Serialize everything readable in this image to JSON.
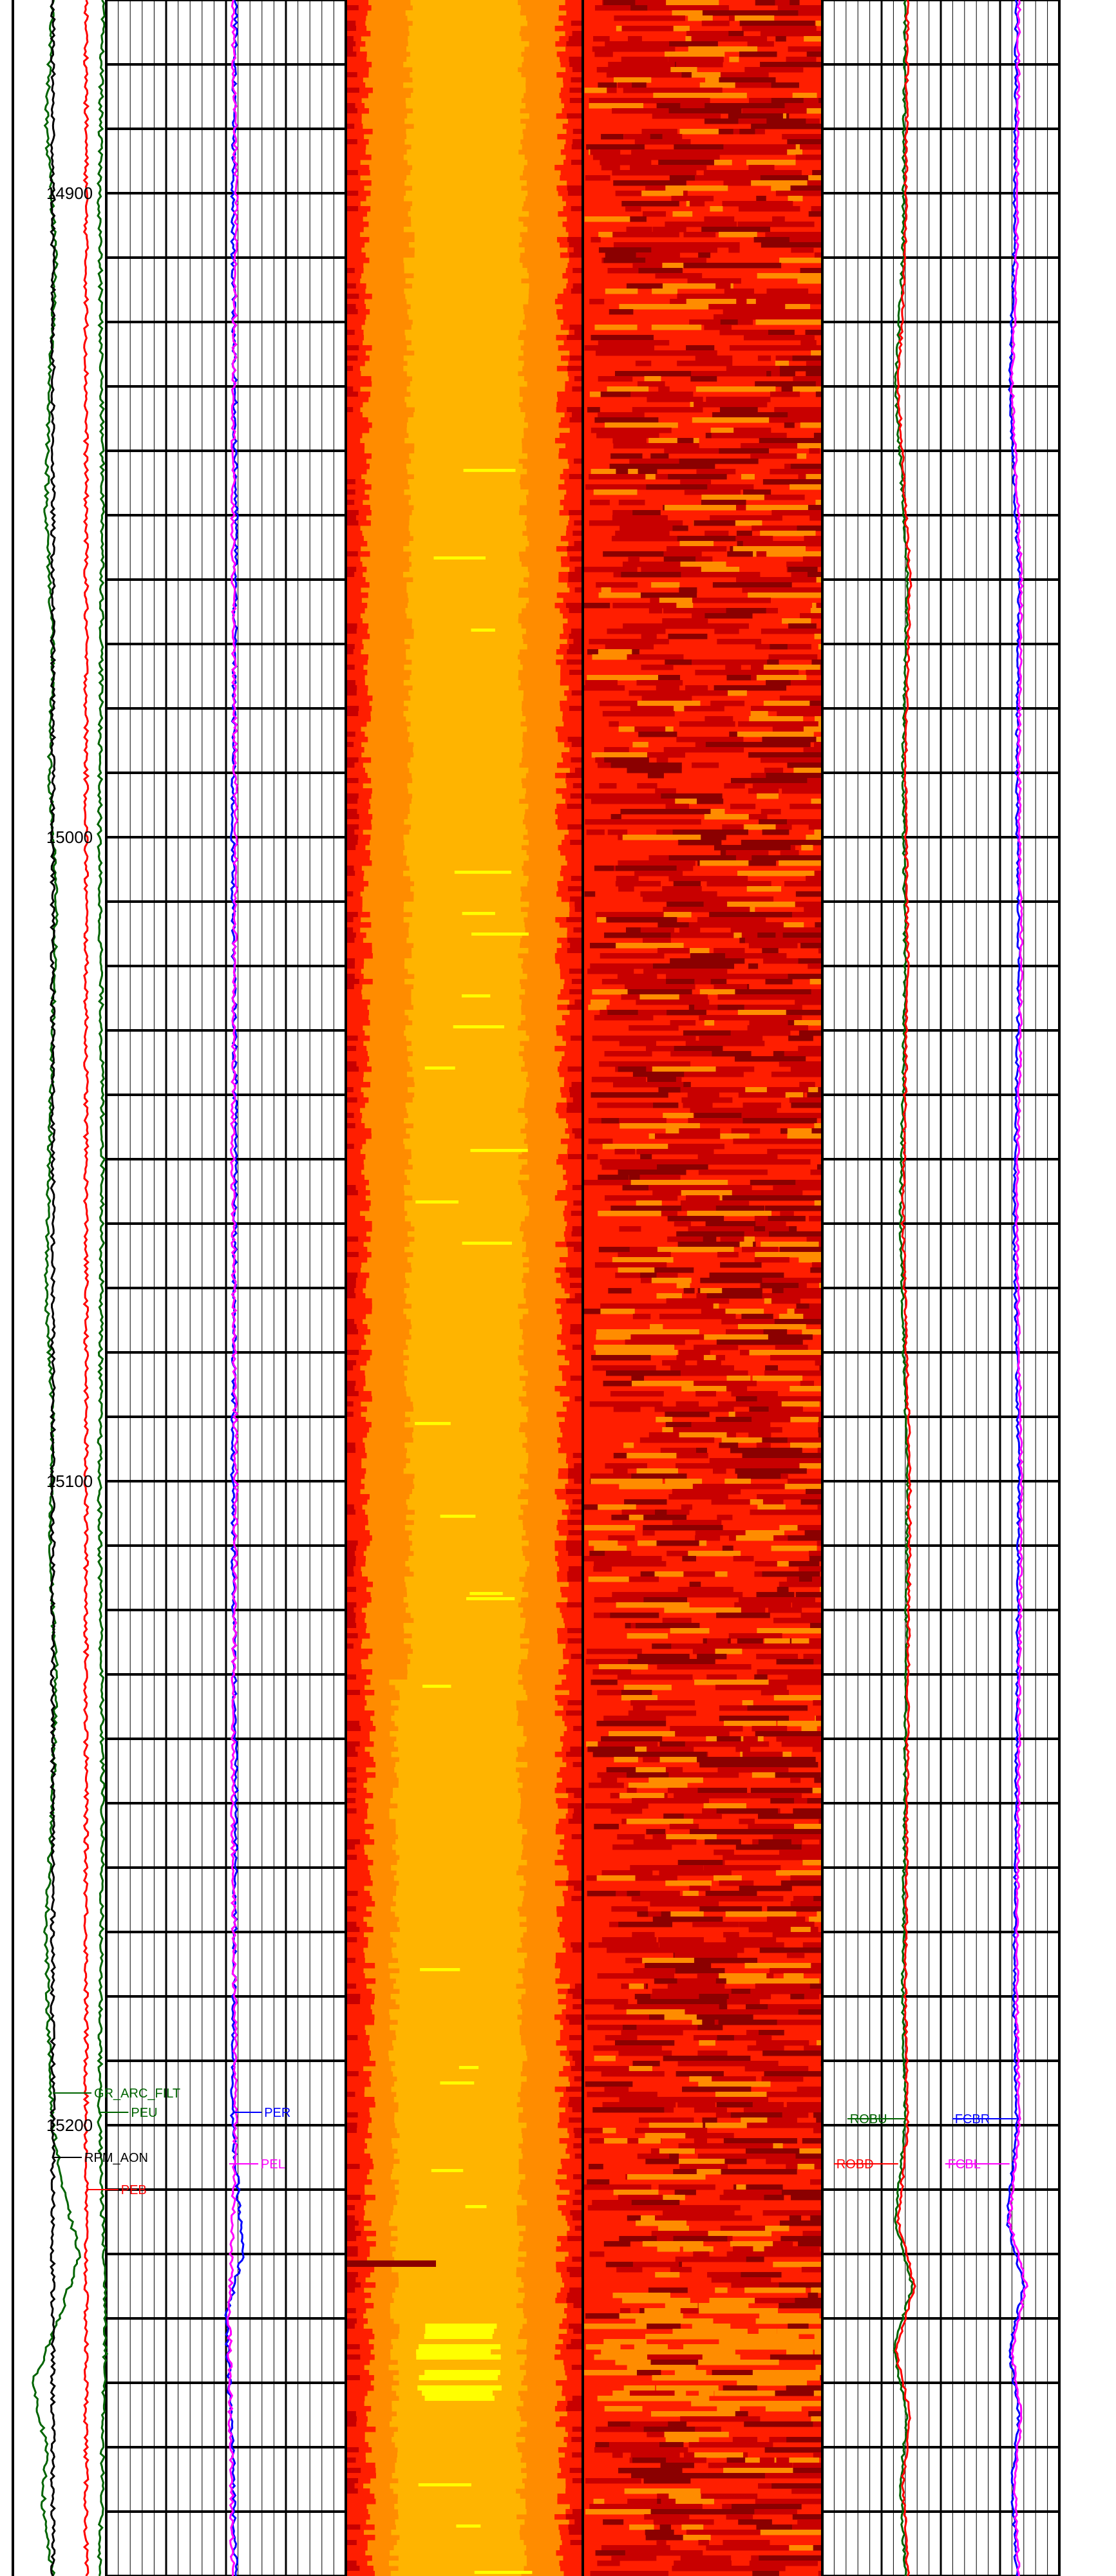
{
  "chart_data": {
    "type": "well-log",
    "title": "",
    "depth_axis": {
      "range": [
        14870,
        15270
      ],
      "orientation": "vertical-down",
      "tick_labels": [
        "14900",
        "15000",
        "15100",
        "15200"
      ],
      "major_grid_interval": 10,
      "grid": true
    },
    "tracks": [
      {
        "name": "track-1",
        "curves": [
          {
            "mnemonic": "GR_ARC_FILT",
            "color": "#006400",
            "depths": [
              14870,
              14890,
              14910,
              14930,
              14950,
              14970,
              14990,
              15010,
              15030,
              15050,
              15070,
              15090,
              15110,
              15130,
              15150,
              15170,
              15190,
              15200,
              15210,
              15220,
              15230,
              15240,
              15250,
              15260,
              15270
            ],
            "values": [
              0.12,
              0.1,
              0.13,
              0.11,
              0.1,
              0.12,
              0.11,
              0.13,
              0.12,
              0.11,
              0.1,
              0.12,
              0.11,
              0.13,
              0.12,
              0.1,
              0.11,
              0.12,
              0.15,
              0.2,
              0.14,
              0.06,
              0.1,
              0.09,
              0.12
            ]
          },
          {
            "mnemonic": "RPM_AON",
            "color": "#000000",
            "depths": [
              14870,
              14950,
              15050,
              15150,
              15200,
              15230,
              15250,
              15270
            ],
            "values": [
              0.12,
              0.12,
              0.12,
              0.12,
              0.12,
              0.12,
              0.12,
              0.12
            ]
          },
          {
            "mnemonic": "PEB",
            "color": "#ff0000",
            "depths": [
              14870,
              15000,
              15100,
              15200,
              15270
            ],
            "values": [
              0.22,
              0.22,
              0.22,
              0.22,
              0.22
            ]
          },
          {
            "mnemonic": "PEU",
            "color": "#006400",
            "depths": [
              14870,
              14900,
              14950,
              15000,
              15050,
              15100,
              15150,
              15200,
              15230,
              15250,
              15270
            ],
            "values": [
              0.27,
              0.26,
              0.27,
              0.26,
              0.27,
              0.26,
              0.27,
              0.26,
              0.28,
              0.27,
              0.26
            ]
          },
          {
            "mnemonic": "PER",
            "color": "#0000ff",
            "depths": [
              14870,
              14900,
              14950,
              15000,
              15050,
              15100,
              15150,
              15200,
              15220,
              15230,
              15250,
              15270
            ],
            "values": [
              0.67,
              0.66,
              0.67,
              0.66,
              0.67,
              0.66,
              0.67,
              0.66,
              0.69,
              0.64,
              0.66,
              0.67
            ]
          },
          {
            "mnemonic": "PEL",
            "color": "#ff00ff",
            "depths": [
              14870,
              14900,
              14950,
              15000,
              15050,
              15100,
              15150,
              15200,
              15230,
              15270
            ],
            "values": [
              0.66,
              0.67,
              0.66,
              0.67,
              0.66,
              0.67,
              0.66,
              0.67,
              0.65,
              0.66
            ]
          }
        ]
      },
      {
        "name": "image-track-1",
        "type": "heatmap",
        "colormap": [
          "#8b0000",
          "#c80000",
          "#ff1e00",
          "#ff8c00",
          "#ffb400",
          "#ffff00"
        ]
      },
      {
        "name": "image-track-2",
        "type": "heatmap",
        "colormap": [
          "#8b0000",
          "#c80000",
          "#ff1e00",
          "#ff8c00",
          "#ffb400",
          "#ffff00"
        ]
      },
      {
        "name": "track-4",
        "curves": [
          {
            "mnemonic": "ROBU",
            "color": "#006400",
            "depths": [
              14870,
              14910,
              14930,
              14960,
              14990,
              15020,
              15060,
              15100,
              15140,
              15180,
              15200,
              15215,
              15225,
              15235,
              15245,
              15255,
              15270
            ],
            "values": [
              0.35,
              0.34,
              0.31,
              0.36,
              0.34,
              0.35,
              0.33,
              0.36,
              0.35,
              0.34,
              0.35,
              0.31,
              0.38,
              0.3,
              0.36,
              0.33,
              0.35
            ]
          },
          {
            "mnemonic": "ROBD",
            "color": "#ff0000",
            "depths": [
              14870,
              14910,
              14930,
              14960,
              14990,
              15020,
              15060,
              15100,
              15140,
              15180,
              15200,
              15215,
              15225,
              15235,
              15245,
              15255,
              15270
            ],
            "values": [
              0.36,
              0.35,
              0.32,
              0.37,
              0.35,
              0.36,
              0.34,
              0.37,
              0.36,
              0.35,
              0.36,
              0.32,
              0.39,
              0.31,
              0.37,
              0.34,
              0.36
            ]
          },
          {
            "mnemonic": "FCBR",
            "color": "#0000ff",
            "depths": [
              14870,
              14910,
              14930,
              14960,
              14990,
              15020,
              15060,
              15100,
              15140,
              15180,
              15200,
              15215,
              15225,
              15235,
              15245,
              15255,
              15270
            ],
            "values": [
              0.82,
              0.81,
              0.79,
              0.83,
              0.82,
              0.83,
              0.81,
              0.83,
              0.82,
              0.81,
              0.82,
              0.78,
              0.85,
              0.79,
              0.83,
              0.8,
              0.82
            ]
          },
          {
            "mnemonic": "FCBL",
            "color": "#ff00ff",
            "depths": [
              14870,
              14910,
              14930,
              14960,
              14990,
              15020,
              15060,
              15100,
              15140,
              15180,
              15200,
              15215,
              15225,
              15235,
              15245,
              15255,
              15270
            ],
            "values": [
              0.83,
              0.82,
              0.8,
              0.84,
              0.83,
              0.84,
              0.82,
              0.84,
              0.83,
              0.82,
              0.83,
              0.79,
              0.86,
              0.8,
              0.84,
              0.81,
              0.83
            ]
          }
        ]
      }
    ]
  }
}
